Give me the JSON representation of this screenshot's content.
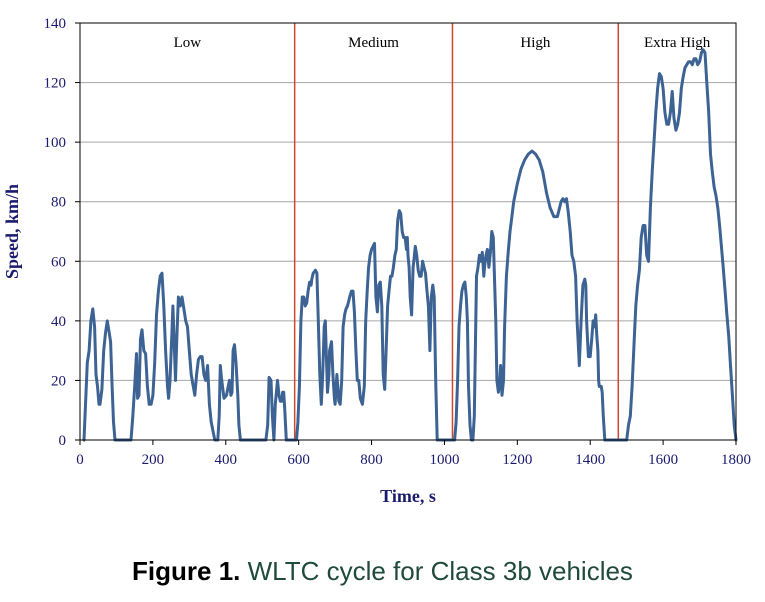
{
  "chart_data": {
    "type": "line",
    "xlabel": "Time, s",
    "ylabel": "Speed, km/h",
    "xlim": [
      0,
      1800
    ],
    "ylim": [
      0,
      140
    ],
    "xticks": [
      0,
      200,
      400,
      600,
      800,
      1000,
      1200,
      1400,
      1600,
      1800
    ],
    "yticks": [
      0,
      20,
      40,
      60,
      80,
      100,
      120,
      140
    ],
    "grid": "horizontal",
    "colors": {
      "line": "#3d6394",
      "phase_divider": "#d2472c",
      "grid": "#a6a6a6"
    },
    "phase_boundaries": [
      589,
      1022,
      1477
    ],
    "phases": [
      {
        "label": "Low",
        "start": 0,
        "end": 589
      },
      {
        "label": "Medium",
        "start": 589,
        "end": 1022
      },
      {
        "label": "High",
        "start": 1022,
        "end": 1477
      },
      {
        "label": "Extra High",
        "start": 1477,
        "end": 1800
      }
    ],
    "series": [
      {
        "x": [
          11,
          20,
          25,
          30,
          35,
          40,
          44,
          48,
          52,
          55,
          60,
          65,
          70,
          75,
          80,
          84,
          88,
          92,
          96,
          100,
          140,
          145,
          150,
          155,
          158,
          162,
          166,
          170,
          175,
          180,
          185,
          190,
          195,
          200,
          205,
          210,
          215,
          220,
          225,
          230,
          235,
          240,
          243,
          247,
          252,
          255,
          262,
          266,
          270,
          275,
          280,
          285,
          290,
          295,
          300,
          305,
          315,
          320,
          325,
          330,
          335,
          340,
          345,
          350,
          355,
          360,
          370,
          375,
          378,
          382,
          385,
          388,
          395,
          402,
          405,
          410,
          414,
          417,
          420,
          424,
          428,
          433,
          436,
          440,
          443,
          447,
          449,
          451,
          475,
          485,
          510,
          515,
          519,
          524,
          528,
          532,
          536,
          542,
          546,
          550,
          553,
          556,
          559,
          562,
          566,
          570,
          588
        ],
        "y": [
          0,
          26,
          30,
          40,
          44,
          38,
          22,
          18,
          12,
          12,
          17,
          30,
          36,
          40,
          36,
          33,
          18,
          6,
          0,
          0,
          0,
          8,
          18,
          29,
          14,
          15,
          34,
          37,
          30,
          29,
          18,
          12,
          12,
          15,
          26,
          42,
          50,
          55,
          56,
          45,
          30,
          18,
          14,
          20,
          35,
          45,
          20,
          35,
          48,
          45,
          48,
          44,
          40,
          38,
          30,
          22,
          15,
          22,
          27,
          28,
          28,
          22,
          20,
          25,
          12,
          6,
          0,
          0,
          0,
          8,
          25,
          21,
          14,
          15,
          17,
          20,
          15,
          16,
          30,
          32,
          26,
          15,
          5,
          0,
          0,
          0,
          0,
          0,
          0,
          0,
          0,
          5,
          21,
          20,
          8,
          0,
          12,
          20,
          15,
          13,
          13,
          16,
          16,
          10,
          0,
          0,
          0
        ]
      },
      {
        "x": [
          589,
          594,
          598,
          602,
          606,
          610,
          614,
          618,
          622,
          626,
          630,
          634,
          636,
          640,
          646,
          650,
          654,
          658,
          662,
          666,
          670,
          673,
          676,
          679,
          683,
          685,
          690,
          694,
          698,
          700,
          703,
          705,
          710,
          714,
          718,
          722,
          726,
          730,
          734,
          738,
          740,
          745,
          749,
          753,
          757,
          761,
          765,
          769,
          775,
          780,
          784,
          788,
          792,
          796,
          800,
          804,
          808,
          812,
          816,
          820,
          824,
          828,
          832,
          836,
          840,
          844,
          848,
          852,
          856,
          860,
          864,
          868,
          870,
          872,
          876,
          880,
          884,
          888,
          892,
          896,
          898,
          900,
          903,
          906,
          910,
          914,
          916,
          920,
          924,
          928,
          932,
          936,
          940,
          944,
          948,
          952,
          956,
          960,
          964,
          968,
          972,
          976,
          980,
          984,
          988,
          992,
          996,
          1000,
          1005,
          1010,
          1022
        ],
        "y": [
          0,
          0,
          6,
          18,
          40,
          48,
          48,
          45,
          46,
          50,
          53,
          52,
          54,
          56,
          57,
          56,
          40,
          22,
          12,
          22,
          38,
          40,
          28,
          16,
          22,
          30,
          33,
          22,
          14,
          12,
          18,
          22,
          13,
          12,
          20,
          38,
          42,
          44,
          45,
          47,
          48,
          50,
          50,
          43,
          30,
          20,
          20,
          14,
          12,
          18,
          40,
          50,
          58,
          62,
          64,
          65,
          66,
          48,
          43,
          52,
          53,
          45,
          22,
          17,
          30,
          45,
          50,
          55,
          55,
          58,
          62,
          64,
          70,
          74,
          77,
          76,
          70,
          68,
          68,
          64,
          68,
          62,
          58,
          48,
          42,
          58,
          60,
          65,
          62,
          57,
          55,
          55,
          60,
          58,
          56,
          50,
          45,
          30,
          48,
          52,
          48,
          20,
          0,
          0,
          0,
          0,
          0,
          0,
          0,
          0,
          0
        ]
      },
      {
        "x": [
          1023,
          1028,
          1032,
          1036,
          1040,
          1044,
          1048,
          1052,
          1056,
          1060,
          1063,
          1066,
          1070,
          1074,
          1078,
          1082,
          1086,
          1088,
          1092,
          1096,
          1100,
          1104,
          1108,
          1110,
          1114,
          1118,
          1122,
          1126,
          1130,
          1134,
          1138,
          1141,
          1144,
          1148,
          1152,
          1154,
          1158,
          1162,
          1165,
          1170,
          1175,
          1180,
          1185,
          1190,
          1200,
          1210,
          1220,
          1230,
          1240,
          1250,
          1260,
          1270,
          1280,
          1290,
          1300,
          1310,
          1320,
          1325,
          1330,
          1335,
          1340,
          1345,
          1350,
          1355,
          1360,
          1364,
          1368,
          1370,
          1375,
          1380,
          1385,
          1388,
          1390,
          1395,
          1400,
          1405,
          1408,
          1412,
          1415,
          1418,
          1421,
          1423,
          1425,
          1430,
          1433,
          1436,
          1440,
          1442,
          1446,
          1450,
          1455,
          1460,
          1465,
          1470,
          1477
        ],
        "y": [
          0,
          0,
          6,
          20,
          38,
          45,
          50,
          52,
          53,
          48,
          40,
          18,
          5,
          0,
          0,
          8,
          40,
          55,
          58,
          62,
          60,
          63,
          55,
          58,
          62,
          64,
          58,
          63,
          70,
          68,
          52,
          40,
          20,
          16,
          20,
          25,
          15,
          20,
          38,
          55,
          63,
          70,
          75,
          80,
          86,
          91,
          94,
          96,
          97,
          96,
          94,
          90,
          83,
          78,
          75,
          75,
          80,
          81,
          80,
          81,
          76,
          70,
          62,
          60,
          55,
          40,
          30,
          25,
          40,
          52,
          54,
          52,
          40,
          28,
          28,
          35,
          40,
          38,
          42,
          35,
          30,
          20,
          18,
          18,
          16,
          8,
          0,
          0,
          0,
          0,
          0,
          0,
          0,
          0,
          0
        ]
      },
      {
        "x": [
          1478,
          1490,
          1500,
          1505,
          1510,
          1515,
          1520,
          1525,
          1530,
          1535,
          1540,
          1545,
          1550,
          1555,
          1560,
          1565,
          1570,
          1575,
          1580,
          1585,
          1590,
          1595,
          1600,
          1605,
          1610,
          1615,
          1620,
          1625,
          1630,
          1635,
          1640,
          1645,
          1650,
          1655,
          1660,
          1665,
          1670,
          1675,
          1680,
          1685,
          1690,
          1695,
          1700,
          1705,
          1710,
          1715,
          1720,
          1725,
          1730,
          1735,
          1740,
          1745,
          1750,
          1755,
          1760,
          1765,
          1770,
          1775,
          1780,
          1785,
          1790,
          1795,
          1800
        ],
        "y": [
          0,
          0,
          0,
          5,
          8,
          18,
          32,
          45,
          52,
          57,
          68,
          72,
          72,
          62,
          60,
          78,
          90,
          100,
          110,
          118,
          123,
          122,
          118,
          110,
          106,
          106,
          110,
          117,
          108,
          104,
          106,
          110,
          118,
          122,
          125,
          126,
          127,
          127,
          126,
          128,
          128,
          126,
          127,
          130,
          131,
          130,
          120,
          110,
          96,
          90,
          85,
          82,
          78,
          72,
          65,
          58,
          50,
          42,
          35,
          25,
          15,
          5,
          0
        ]
      }
    ]
  },
  "caption": {
    "figure": "Figure 1.",
    "text": "WLTC cycle for Class 3b vehicles"
  }
}
